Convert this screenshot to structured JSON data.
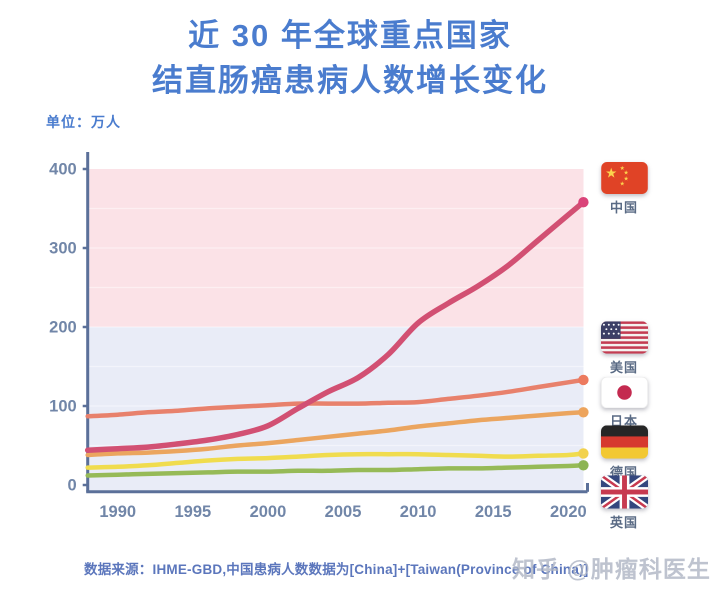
{
  "title": {
    "line1": "近 30 年全球重点国家",
    "line2": "结直肠癌患病人数增长变化",
    "color": "#4a7cce"
  },
  "unit_label": "单位：万人",
  "source_note": "数据来源：IHME-GBD,中国患病人数数据为[China]+[Taiwan(Province of China)]",
  "watermark": "知乎 @肿瘤科医生",
  "axis": {
    "line_color": "#5b7099",
    "tick_label_color": "#7186a8"
  },
  "chart_data": {
    "type": "line",
    "title": "近 30 年全球重点国家结直肠癌患病人数增长变化",
    "xlabel": "",
    "ylabel": "单位：万人 (unit: 10,000 persons)",
    "x": [
      1988,
      1990,
      1992,
      1994,
      1996,
      1998,
      2000,
      2002,
      2004,
      2006,
      2008,
      2010,
      2012,
      2014,
      2016,
      2018,
      2020,
      2021
    ],
    "x_ticks": [
      1990,
      1995,
      2000,
      2005,
      2010,
      2015,
      2020
    ],
    "y_ticks": [
      0,
      100,
      200,
      300,
      400
    ],
    "xlim": [
      1988,
      2021.5
    ],
    "ylim": [
      0,
      400
    ],
    "grid": "faint horizontal lines every 50",
    "legend_position": "right",
    "bands": [
      {
        "from": 200,
        "to": 400,
        "color": "#fbe2e7"
      },
      {
        "from": -8,
        "to": 200,
        "color": "#e9ecf7"
      }
    ],
    "series": [
      {
        "name": "中国",
        "color": "#d25073",
        "dot_color": "#da4379",
        "width": 5.5,
        "values": [
          44,
          46,
          48,
          52,
          57,
          64,
          75,
          97,
          118,
          136,
          165,
          205,
          230,
          252,
          278,
          310,
          342,
          358
        ]
      },
      {
        "name": "美国",
        "color": "#e8816c",
        "dot_color": "#ec7a5f",
        "width": 4.5,
        "values": [
          87,
          89,
          92,
          94,
          97,
          99,
          101,
          103,
          103,
          103,
          104,
          105,
          109,
          113,
          118,
          124,
          130,
          133
        ]
      },
      {
        "name": "日本",
        "color": "#eba55f",
        "dot_color": "#eda45c",
        "width": 4.5,
        "values": [
          38,
          40,
          41,
          43,
          46,
          50,
          53,
          57,
          61,
          65,
          69,
          74,
          78,
          82,
          85,
          88,
          91,
          92
        ]
      },
      {
        "name": "德国",
        "color": "#f0dc4e",
        "dot_color": "#f2d24d",
        "width": 4.5,
        "values": [
          22,
          23,
          25,
          28,
          31,
          33,
          34,
          36,
          38,
          39,
          39,
          39,
          38,
          37,
          36,
          37,
          38,
          40
        ]
      },
      {
        "name": "英国",
        "color": "#96ba57",
        "dot_color": "#8cb453",
        "width": 4.5,
        "values": [
          12,
          13,
          14,
          15,
          16,
          17,
          17,
          18,
          18,
          19,
          19,
          20,
          21,
          21,
          22,
          23,
          24,
          25
        ]
      }
    ]
  }
}
